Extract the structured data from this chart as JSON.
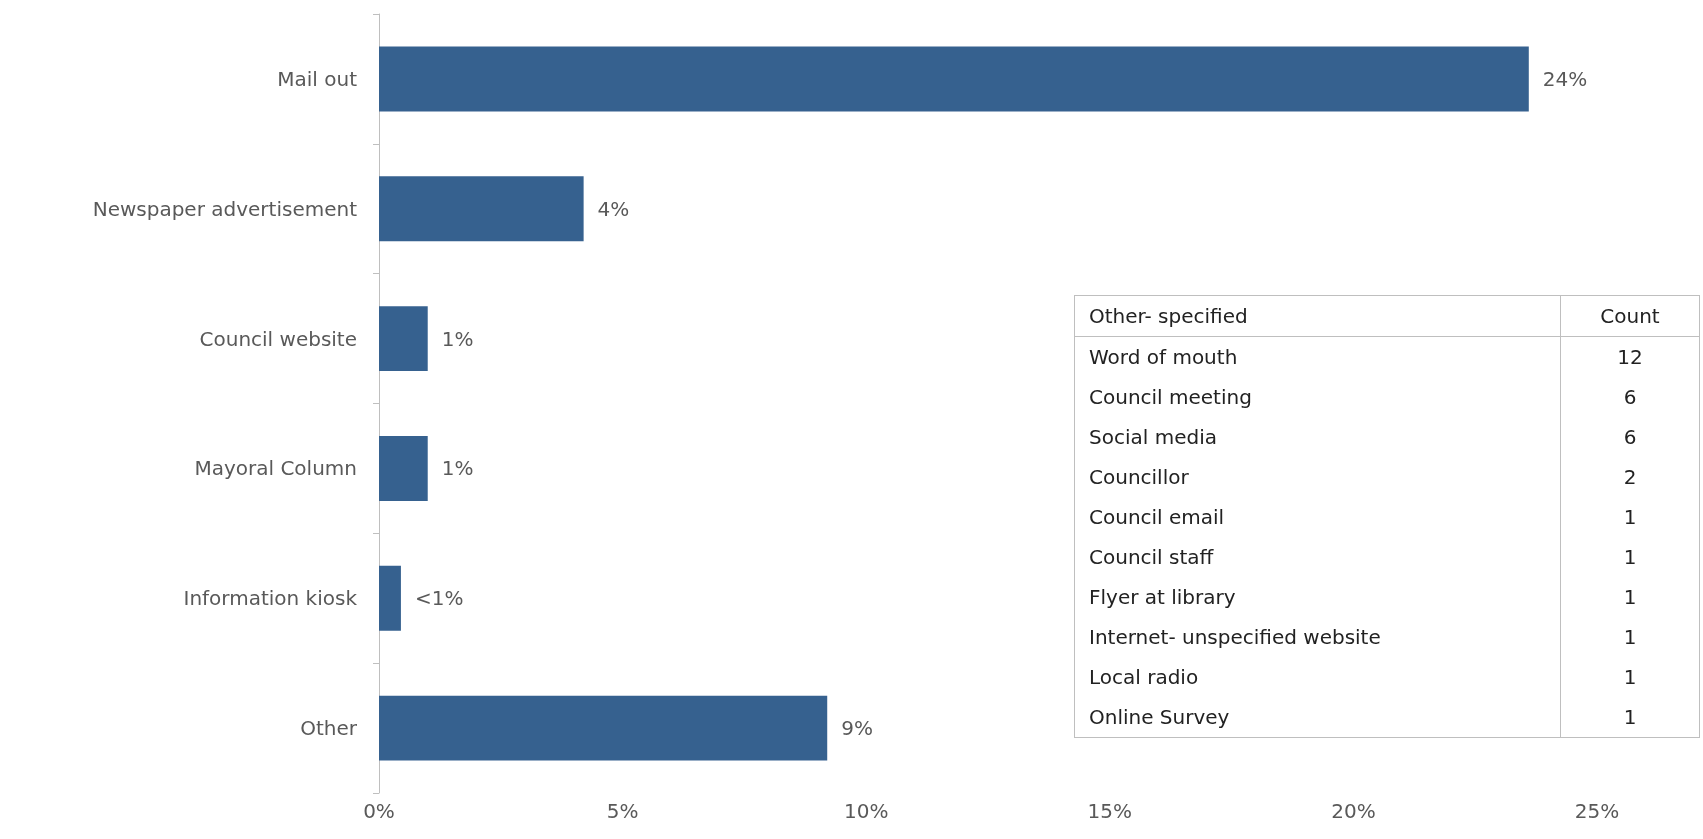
{
  "chart_data": [
    {
      "type": "bar",
      "orientation": "horizontal",
      "categories": [
        "Mail out",
        "Newspaper advertisement",
        "Council website",
        "Mayoral Column",
        "Information kiosk",
        "Other"
      ],
      "values": [
        23.6,
        4.2,
        1.0,
        1.0,
        0.45,
        9.2
      ],
      "color": "#36618f",
      "value_labels": [
        "24%",
        "4%",
        "1%",
        "1%",
        "<1%",
        "9%"
      ],
      "xlim": [
        0,
        25
      ],
      "xticks": [
        {
          "value": 0,
          "label": "0%"
        },
        {
          "value": 5,
          "label": "5%"
        },
        {
          "value": 10,
          "label": "10%"
        },
        {
          "value": 15,
          "label": "15%"
        },
        {
          "value": 20,
          "label": "20%"
        },
        {
          "value": 25,
          "label": "25%"
        }
      ]
    },
    {
      "type": "other",
      "xlabel": "Other- specified",
      "ylabel": "Count",
      "data_labels": true,
      "categories": [
        "Word of mouth",
        "Council meeting",
        "Social media",
        "Councillor",
        "Council email",
        "Council staff",
        "Flyer at library",
        "Internet- unspecified website",
        "Local radio",
        "Online Survey"
      ],
      "values": [
        12,
        6,
        6,
        2,
        1,
        1,
        1,
        1,
        1,
        1
      ]
    }
  ]
}
